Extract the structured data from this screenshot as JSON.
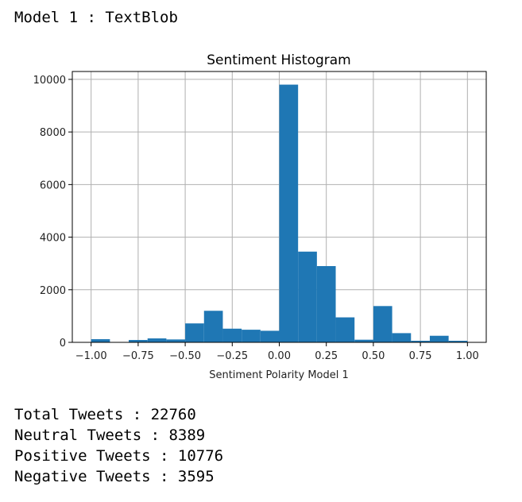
{
  "output": {
    "heading": "Model 1 : TextBlob",
    "stats": [
      {
        "label": "Total Tweets",
        "value": "22760"
      },
      {
        "label": "Neutral Tweets",
        "value": "8389"
      },
      {
        "label": "Positive Tweets",
        "value": "10776"
      },
      {
        "label": "Negative Tweets",
        "value": "3595"
      }
    ]
  },
  "chart_data": {
    "type": "bar",
    "title": "Sentiment Histogram",
    "xlabel": "Sentiment Polarity Model 1",
    "ylabel": "",
    "xlim": [
      -1.1,
      1.1
    ],
    "ylim": [
      0,
      10300
    ],
    "grid": true,
    "bar_color": "#1f77b4",
    "bin_edges": [
      -1.0,
      -0.9,
      -0.8,
      -0.7,
      -0.6,
      -0.5,
      -0.4,
      -0.3,
      -0.2,
      -0.1,
      0.0,
      0.1,
      0.2,
      0.3,
      0.4,
      0.5,
      0.6,
      0.7,
      0.8,
      0.9,
      1.0
    ],
    "values": [
      120,
      10,
      90,
      150,
      110,
      720,
      1200,
      520,
      480,
      440,
      9800,
      3450,
      2900,
      950,
      100,
      1380,
      350,
      60,
      250,
      60
    ],
    "xticks": [
      -1.0,
      -0.75,
      -0.5,
      -0.25,
      0.0,
      0.25,
      0.5,
      0.75,
      1.0
    ],
    "xtick_labels": [
      "−1.00",
      "−0.75",
      "−0.50",
      "−0.25",
      "0.00",
      "0.25",
      "0.50",
      "0.75",
      "1.00"
    ],
    "yticks": [
      0,
      2000,
      4000,
      6000,
      8000,
      10000
    ],
    "ytick_labels": [
      "0",
      "2000",
      "4000",
      "6000",
      "8000",
      "10000"
    ]
  }
}
